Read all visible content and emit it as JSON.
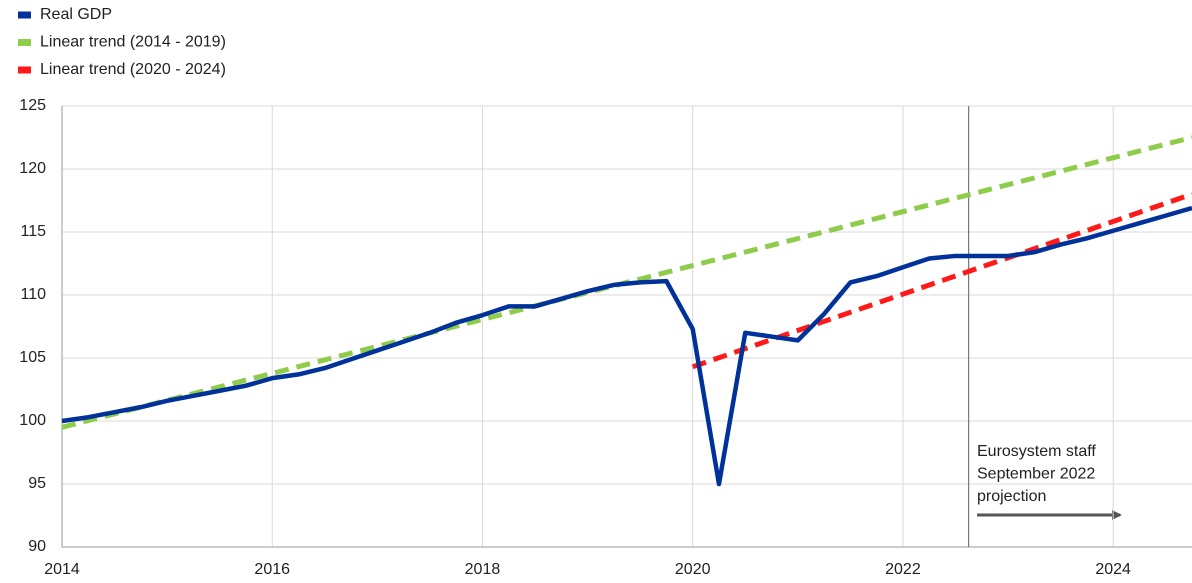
{
  "chart_data": {
    "type": "line",
    "series": [
      {
        "name": "Real GDP",
        "color": "#003299",
        "dash": false,
        "x": [
          2014,
          2014.25,
          2014.5,
          2014.75,
          2015,
          2015.25,
          2015.5,
          2015.75,
          2016,
          2016.25,
          2016.5,
          2016.75,
          2017,
          2017.25,
          2017.5,
          2017.75,
          2018,
          2018.25,
          2018.5,
          2018.75,
          2019,
          2019.25,
          2019.5,
          2019.75,
          2020,
          2020.25,
          2020.5,
          2020.75,
          2021,
          2021.25,
          2021.5,
          2021.75,
          2022,
          2022.25,
          2022.5,
          2022.75,
          2023,
          2023.25,
          2023.5,
          2023.75,
          2024,
          2024.25,
          2024.5,
          2024.75
        ],
        "values": [
          100.0,
          100.3,
          100.7,
          101.1,
          101.6,
          102.0,
          102.4,
          102.8,
          103.4,
          103.7,
          104.2,
          104.9,
          105.6,
          106.3,
          107.0,
          107.8,
          108.4,
          109.1,
          109.1,
          109.7,
          110.3,
          110.8,
          111.0,
          111.1,
          107.3,
          95.0,
          107.0,
          106.7,
          106.4,
          108.5,
          111.0,
          111.5,
          112.2,
          112.9,
          113.1,
          113.1,
          113.1,
          113.4,
          114.0,
          114.5,
          115.1,
          115.7,
          116.3,
          116.9
        ]
      },
      {
        "name": "Linear trend (2014 - 2019)",
        "color": "#8fcc4c",
        "dash": true,
        "x": [
          2014,
          2024.75
        ],
        "values": [
          99.5,
          122.5
        ]
      },
      {
        "name": "Linear trend (2020 - 2024)",
        "color": "#ff1a1a",
        "dash": true,
        "x": [
          2020,
          2024.75
        ],
        "values": [
          104.3,
          118.0
        ]
      }
    ],
    "xlim": [
      2014,
      2024.75
    ],
    "xticks": [
      2014,
      2016,
      2018,
      2020,
      2022,
      2024
    ],
    "ylim": [
      90,
      125
    ],
    "yticks": [
      90,
      95,
      100,
      105,
      110,
      115,
      120,
      125
    ],
    "grid": true,
    "legend": "top-left",
    "vline_x": 2022.625,
    "annotation": [
      "Eurosystem staff",
      "September 2022",
      "projection"
    ]
  }
}
